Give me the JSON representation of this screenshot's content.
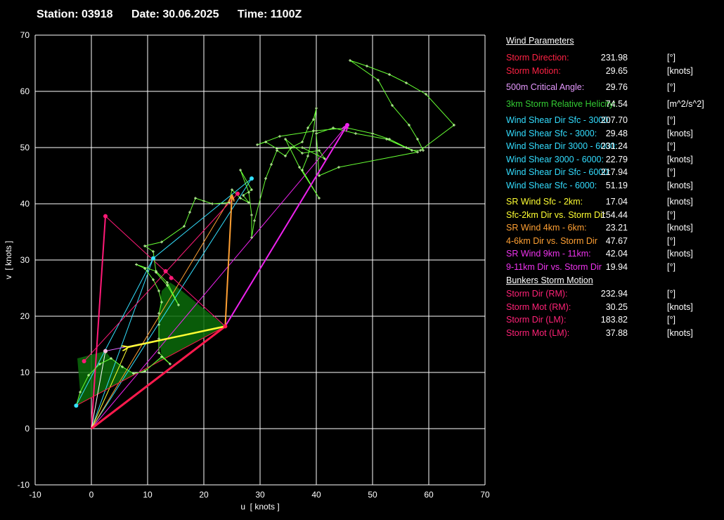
{
  "header": {
    "station": "Station: 03918",
    "date": "Date: 30.06.2025",
    "time": "Time: 1100Z"
  },
  "chart_data": {
    "type": "scatter",
    "subtype": "hodograph",
    "xlabel": "u  [ knots ]",
    "ylabel": "v  [ knots ]",
    "xlim": [
      -10,
      70
    ],
    "ylim": [
      -10,
      70
    ],
    "xticks": [
      -10,
      0,
      10,
      20,
      30,
      40,
      50,
      60,
      70
    ],
    "yticks": [
      -10,
      0,
      10,
      20,
      30,
      40,
      50,
      60,
      70
    ],
    "grid": true,
    "colors": {
      "grid": "#ffffff",
      "hodograph": "#66ff33",
      "helicity_fill": "#0a6b0a",
      "storm_motion": "#ff1a4d",
      "critical_angle": "#e066ff",
      "shear": "#33e0ff",
      "sr_low": "#ffff33",
      "sr_mid": "#ffa033",
      "sr_high": "#ee22ee",
      "bunkers": "#ff1a77"
    },
    "hodograph": [
      [
        -2.7,
        4.1
      ],
      [
        -2.0,
        6.5
      ],
      [
        -0.5,
        9.5
      ],
      [
        1.5,
        11.5
      ],
      [
        3.5,
        12.5
      ],
      [
        5.5,
        11.0
      ],
      [
        7.5,
        9.8
      ],
      [
        9.5,
        10.2
      ],
      [
        12.5,
        12.8
      ],
      [
        14.0,
        11.5
      ],
      [
        12.0,
        13.5
      ],
      [
        12.0,
        16.0
      ],
      [
        12.0,
        18.5
      ],
      [
        12.0,
        20.5
      ],
      [
        12.5,
        22.5
      ],
      [
        12.0,
        24.5
      ],
      [
        11.0,
        26.5
      ],
      [
        9.5,
        28.5
      ],
      [
        8.0,
        29.2
      ],
      [
        11.5,
        28.0
      ],
      [
        13.5,
        26.0
      ],
      [
        15.5,
        22.0
      ],
      [
        13.5,
        25.5
      ],
      [
        11.5,
        27.8
      ],
      [
        11.0,
        31.5
      ],
      [
        9.5,
        32.5
      ],
      [
        12.5,
        33.2
      ],
      [
        16.5,
        36.0
      ],
      [
        17.5,
        38.5
      ],
      [
        18.5,
        41.0
      ],
      [
        20.0,
        40.5
      ],
      [
        21.5,
        40.0
      ],
      [
        24.5,
        40.2
      ],
      [
        25.0,
        42.5
      ],
      [
        26.5,
        41.0
      ],
      [
        28.0,
        40.2
      ],
      [
        27.0,
        41.5
      ],
      [
        28.5,
        42.5
      ],
      [
        26.5,
        46.0
      ],
      [
        28.0,
        42.0
      ],
      [
        28.5,
        38.0
      ],
      [
        28.5,
        34.0
      ],
      [
        29.0,
        37.0
      ],
      [
        31.0,
        44.5
      ],
      [
        32.0,
        47.0
      ],
      [
        33.0,
        49.5
      ],
      [
        34.5,
        48.5
      ],
      [
        35.5,
        50.0
      ],
      [
        37.5,
        51.0
      ],
      [
        38.5,
        53.5
      ],
      [
        39.5,
        55.0
      ],
      [
        40.0,
        57.0
      ],
      [
        39.5,
        53.0
      ],
      [
        38.5,
        48.5
      ],
      [
        37.5,
        46.0
      ],
      [
        40.5,
        41.0
      ],
      [
        37.0,
        46.5
      ],
      [
        34.5,
        51.5
      ],
      [
        37.5,
        49.0
      ],
      [
        40.5,
        49.5
      ],
      [
        41.5,
        48.0
      ],
      [
        37.5,
        50.0
      ],
      [
        33.0,
        49.8
      ],
      [
        31.0,
        51.0
      ],
      [
        29.5,
        50.5
      ],
      [
        33.5,
        52.0
      ],
      [
        40.0,
        53.0
      ],
      [
        45.5,
        53.5
      ],
      [
        50.0,
        52.5
      ],
      [
        53.0,
        51.5
      ],
      [
        56.0,
        50.0
      ],
      [
        58.0,
        49.2
      ],
      [
        44.0,
        46.5
      ],
      [
        40.5,
        45.0
      ],
      [
        40.0,
        52.5
      ],
      [
        43.0,
        53.5
      ],
      [
        47.0,
        52.5
      ],
      [
        52.5,
        51.5
      ],
      [
        57.0,
        49.5
      ],
      [
        58.5,
        49.5
      ],
      [
        64.5,
        54.0
      ],
      [
        59.5,
        59.5
      ],
      [
        56.0,
        61.5
      ],
      [
        53.0,
        63.0
      ],
      [
        49.0,
        64.5
      ],
      [
        46.0,
        65.5
      ],
      [
        51.0,
        62.0
      ],
      [
        53.5,
        57.5
      ],
      [
        56.5,
        54.0
      ],
      [
        58.0,
        51.5
      ],
      [
        59.0,
        49.5
      ]
    ],
    "helicity_polygon": [
      [
        -2.7,
        4.1
      ],
      [
        -2.0,
        6.5
      ],
      [
        -2.5,
        12.5
      ],
      [
        2.5,
        13.8
      ],
      [
        3.5,
        12.5
      ],
      [
        7.5,
        9.8
      ],
      [
        9.5,
        10.2
      ],
      [
        12.5,
        12.8
      ],
      [
        12.0,
        16.0
      ],
      [
        12.0,
        20.5
      ],
      [
        12.5,
        24.5
      ],
      [
        14.0,
        26.0
      ],
      [
        15.5,
        25.0
      ],
      [
        23.8,
        18.2
      ]
    ],
    "storm_motion": [
      23.8,
      18.2
    ],
    "critical_angle_point": [
      2.5,
      13.8
    ],
    "sfc_wind": [
      0,
      0
    ],
    "shear_3km": [
      11.0,
      30.3
    ],
    "shear_6km": [
      28.5,
      44.5
    ],
    "wind_0_2km": [
      6.5,
      14.5
    ],
    "wind_4_6km": [
      25.0,
      41.5
    ],
    "wind_9_11km": [
      45.5,
      54.0
    ],
    "bunkers_rm": [
      24.2,
      18.2
    ],
    "bunkers_lm": [
      2.5,
      37.8
    ],
    "bunkers_extra": [
      [
        -1.3,
        12.0
      ],
      [
        13.2,
        28.0
      ],
      [
        14.2,
        26.8
      ],
      [
        26.0,
        41.8
      ]
    ]
  },
  "params": {
    "title_wind": "Wind Parameters",
    "storm_direction": {
      "label": "Storm Direction:",
      "value": "231.98",
      "unit": "[°]",
      "color": "#ff2244"
    },
    "storm_motion": {
      "label": "Storm Motion:",
      "value": "29.65",
      "unit": "[knots]",
      "color": "#ff2244"
    },
    "critical_angle": {
      "label": "500m Critical Angle:",
      "value": "29.76",
      "unit": "[°]",
      "color": "#e699ff"
    },
    "srh": {
      "label": "3km Storm Relative Helicity:",
      "value": "74.54",
      "unit": "[m^2/s^2]",
      "color": "#33cc33"
    },
    "shear_dir_0_3": {
      "label": "Wind Shear Dir Sfc - 3000:",
      "value": "207.70",
      "unit": "[°]",
      "color": "#33ddff"
    },
    "shear_0_3": {
      "label": "Wind Shear Sfc - 3000:",
      "value": "29.48",
      "unit": "[knots]",
      "color": "#33ddff"
    },
    "shear_dir_3_6": {
      "label": "Wind Shear Dir 3000 - 6000:",
      "value": "231.24",
      "unit": "[°]",
      "color": "#33ddff"
    },
    "shear_3_6": {
      "label": "Wind Shear 3000 - 6000:",
      "value": "22.79",
      "unit": "[knots]",
      "color": "#33ddff"
    },
    "shear_dir_0_6": {
      "label": "Wind Shear Dir Sfc - 6000:",
      "value": "217.94",
      "unit": "[°]",
      "color": "#33ddff"
    },
    "shear_0_6": {
      "label": "Wind Shear Sfc - 6000:",
      "value": "51.19",
      "unit": "[knots]",
      "color": "#33ddff"
    },
    "sr_wind_0_2": {
      "label": "SR Wind Sfc - 2km:",
      "value": "17.04",
      "unit": "[knots]",
      "color": "#ffff33"
    },
    "sr_dir_0_2": {
      "label": "Sfc-2km Dir vs. Storm Dir",
      "value": "154.44",
      "unit": "[°]",
      "color": "#ffff33"
    },
    "sr_wind_4_6": {
      "label": "SR Wind 4km - 6km:",
      "value": "23.21",
      "unit": "[knots]",
      "color": "#ffa033"
    },
    "sr_dir_4_6": {
      "label": "4-6km Dir vs. Storm Dir",
      "value": "47.67",
      "unit": "[°]",
      "color": "#ffa033"
    },
    "sr_wind_9_11": {
      "label": "SR Wind 9km - 11km:",
      "value": "42.04",
      "unit": "[knots]",
      "color": "#ee33ee"
    },
    "sr_dir_9_11": {
      "label": "9-11km Dir vs. Storm Dir",
      "value": "19.94",
      "unit": "[°]",
      "color": "#ee33ee"
    },
    "title_bunkers": "Bunkers Storm Motion",
    "rm_dir": {
      "label": "Storm Dir (RM):",
      "value": "232.94",
      "unit": "[°]",
      "color": "#ff2277"
    },
    "rm_mot": {
      "label": "Storm Mot (RM):",
      "value": "30.25",
      "unit": "[knots]",
      "color": "#ff2277"
    },
    "lm_dir": {
      "label": "Storm Dir (LM):",
      "value": "183.82",
      "unit": "[°]",
      "color": "#ff2277"
    },
    "lm_mot": {
      "label": "Storm Mot (LM):",
      "value": "37.88",
      "unit": "[knots]",
      "color": "#ff2277"
    }
  }
}
